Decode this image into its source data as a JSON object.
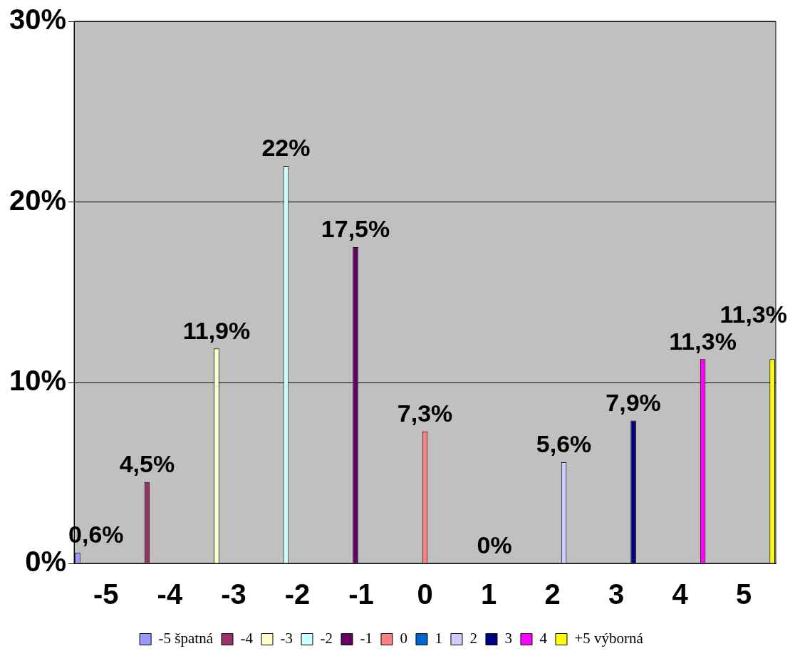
{
  "chart_data": {
    "type": "bar",
    "categories": [
      "-5",
      "-4",
      "-3",
      "-2",
      "-1",
      "0",
      "1",
      "2",
      "3",
      "4",
      "5"
    ],
    "ylim": [
      0,
      30
    ],
    "yticks": [
      {
        "value": 0,
        "label": "0%"
      },
      {
        "value": 10,
        "label": "10%"
      },
      {
        "value": 20,
        "label": "20%"
      },
      {
        "value": 30,
        "label": "30%"
      }
    ],
    "grid": "y",
    "legend": "bottom",
    "series": [
      {
        "name": "-5 špatná",
        "color": "#9999ff",
        "values": [
          0.6,
          null,
          null,
          null,
          null,
          null,
          null,
          null,
          null,
          null,
          null
        ],
        "value_labels": [
          "0,6%",
          null,
          null,
          null,
          null,
          null,
          null,
          null,
          null,
          null,
          null
        ]
      },
      {
        "name": "-4",
        "color": "#993366",
        "values": [
          null,
          4.5,
          null,
          null,
          null,
          null,
          null,
          null,
          null,
          null,
          null
        ],
        "value_labels": [
          null,
          "4,5%",
          null,
          null,
          null,
          null,
          null,
          null,
          null,
          null,
          null
        ]
      },
      {
        "name": "-3",
        "color": "#ffffcc",
        "values": [
          null,
          null,
          11.9,
          null,
          null,
          null,
          null,
          null,
          null,
          null,
          null
        ],
        "value_labels": [
          null,
          null,
          "11,9%",
          null,
          null,
          null,
          null,
          null,
          null,
          null,
          null
        ]
      },
      {
        "name": "-2",
        "color": "#ccffff",
        "values": [
          null,
          null,
          null,
          22,
          null,
          null,
          null,
          null,
          null,
          null,
          null
        ],
        "value_labels": [
          null,
          null,
          null,
          "22%",
          null,
          null,
          null,
          null,
          null,
          null,
          null
        ]
      },
      {
        "name": "-1",
        "color": "#660066",
        "values": [
          null,
          null,
          null,
          null,
          17.5,
          null,
          null,
          null,
          null,
          null,
          null
        ],
        "value_labels": [
          null,
          null,
          null,
          null,
          "17,5%",
          null,
          null,
          null,
          null,
          null,
          null
        ]
      },
      {
        "name": "0",
        "color": "#ff8080",
        "values": [
          null,
          null,
          null,
          null,
          null,
          7.3,
          null,
          null,
          null,
          null,
          null
        ],
        "value_labels": [
          null,
          null,
          null,
          null,
          null,
          "7,3%",
          null,
          null,
          null,
          null,
          null
        ]
      },
      {
        "name": "1",
        "color": "#0066cc",
        "values": [
          null,
          null,
          null,
          null,
          null,
          null,
          0,
          null,
          null,
          null,
          null
        ],
        "value_labels": [
          null,
          null,
          null,
          null,
          null,
          null,
          "0%",
          null,
          null,
          null,
          null
        ]
      },
      {
        "name": "2",
        "color": "#ccccff",
        "values": [
          null,
          null,
          null,
          null,
          null,
          null,
          null,
          5.6,
          null,
          null,
          null
        ],
        "value_labels": [
          null,
          null,
          null,
          null,
          null,
          null,
          null,
          "5,6%",
          null,
          null,
          null
        ]
      },
      {
        "name": "3",
        "color": "#000080",
        "values": [
          null,
          null,
          null,
          null,
          null,
          null,
          null,
          null,
          7.9,
          null,
          null
        ],
        "value_labels": [
          null,
          null,
          null,
          null,
          null,
          null,
          null,
          null,
          "7,9%",
          null,
          null
        ]
      },
      {
        "name": "4",
        "color": "#ff00ff",
        "values": [
          null,
          null,
          null,
          null,
          null,
          null,
          null,
          null,
          null,
          11.3,
          null
        ],
        "value_labels": [
          null,
          null,
          null,
          null,
          null,
          null,
          null,
          null,
          null,
          "11,3%",
          null
        ]
      },
      {
        "name": "+5 výborná",
        "color": "#ffff00",
        "values": [
          null,
          null,
          null,
          null,
          null,
          null,
          null,
          null,
          null,
          null,
          11.3
        ],
        "value_labels": [
          null,
          null,
          null,
          null,
          null,
          null,
          null,
          null,
          null,
          null,
          "11,3%"
        ]
      }
    ]
  }
}
